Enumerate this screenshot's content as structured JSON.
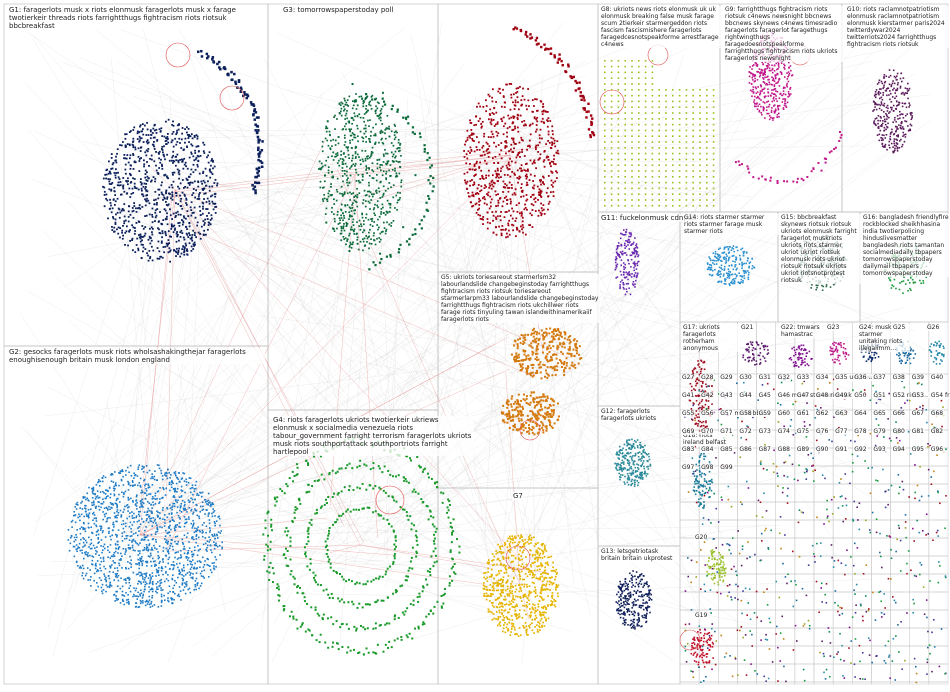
{
  "groups": [
    {
      "id": "G1",
      "label": "G1: faragerlots musk x riots elonmusk faragerlots musk x farage twotierkeir threads riots farrightthugs fightracism riots riotsuk bbcbreakfast",
      "color": "#0b1f5a"
    },
    {
      "id": "G2",
      "label": "G2: gesocks faragerlots musk riots wholsashakingthejar faragerlots enoughisenough britain musk london england",
      "color": "#1e7bc4"
    },
    {
      "id": "G3",
      "label": "G3: tomorrowspaperstoday poll",
      "color": "#0b6a3a"
    },
    {
      "id": "G4",
      "label": "G4: riots faragerlots ukriots twotierkeir ukriews elonmusk x socialmedia venezuela riots tabour_government farright terrorism faragerlots ukriots musk riots southportattack southportriots farright hartlepool",
      "color": "#1a9a2a"
    },
    {
      "id": "G5",
      "label": "G5: ukriots toriesareout starmerlsm32 labourlandslide changebeginstoday farrightthugs fightracism riots riotsuk toriesareout starmerlarpm33 labourlandslide changebeginstoday farrightthugs fightracism riots ukchillwer riots farage riots tinyuling tawan islandwithinamerikaiif faragerlots riots",
      "color": "#d47a10"
    },
    {
      "id": "G6",
      "label": "",
      "color": "#a00010"
    },
    {
      "id": "G7",
      "label": "G7",
      "color": "#e6b400"
    },
    {
      "id": "G8",
      "label": "G8: ukriots news riots elonmusk uk uk elonmusk breaking false musk farage scum 2tierkeir starmergeddon riots fascism fascismishere faragerlots faragedcesnotspeakforme arrestfarage c4news",
      "color": "#9ac020"
    },
    {
      "id": "G9",
      "label": "G9: farrightthugs fightracism riots riotsuk c4news newsnight bbcnews bbcnews skynews c4news timesradio faragerlots faragerlot faragethugs rightwingthugs faragedoesnotspeakforme farrightthugs fightracism riots ukriots faragerlots newsnight",
      "color": "#c0178a"
    },
    {
      "id": "G10",
      "label": "G10: riots raclamnotpatriotism elonmusk raclamnotpatriotism elonmusk kierstarmer paris2024 twitterdywar2024 twitterriots2024 farrightthugs fightracism riots riotsuk",
      "color": "#5a1a5a"
    },
    {
      "id": "G11",
      "label": "G11: fuckelonmusk cdnpoli",
      "color": "#6a2ab0"
    },
    {
      "id": "G12",
      "label": "G12: faragerlots faragerlots ukriots",
      "color": "#2a8a9a"
    },
    {
      "id": "G13",
      "label": "G13: letsgetriotask britain britain ukprotest",
      "color": "#10205a"
    },
    {
      "id": "G14",
      "label": "G14: riots starmer starmer riots starmer farage musk starmer riots",
      "color": "#2a90d0"
    },
    {
      "id": "G15",
      "label": "G15: bbcbreakfast skynews riotsuk riotsuk ukriots elonmusk farright faragerlot muskriots ukriots riots starmer ukriot ukriot riotsuk elonmusk riots ukriot riotsuk riotsuk ukriots ukriot riotsnotprotest riotsuk",
      "color": "#2a6a4a"
    },
    {
      "id": "G16",
      "label": "G16: bangladesh friendlyfire rockblocked sheikhhasina india twotierpolicing hinduslivesmatter bangladesh riots tamantan socialmediadaily tbpapers tomorrowspaperstoday dailymail tbpapers tomorrowspaperstoday",
      "color": "#1a9a3a"
    },
    {
      "id": "G17",
      "label": "G17: ukriots faragerlots rotherham anonymous",
      "color": "#a01020"
    },
    {
      "id": "G18",
      "label": "G18: riots ireland belfast",
      "color": "#1a7a9a"
    },
    {
      "id": "G19",
      "label": "G19",
      "color": "#c0102a"
    },
    {
      "id": "G20",
      "label": "G20",
      "color": "#9ac030"
    },
    {
      "id": "G21",
      "label": "G21",
      "color": "#5a1a6a"
    },
    {
      "id": "G22",
      "label": "G22: tmwars hamastrac",
      "color": "#801090"
    },
    {
      "id": "G23",
      "label": "G23",
      "color": "#c01a8a"
    },
    {
      "id": "G24",
      "label": "G24: musk starmer unitaking riots illegalimm…",
      "color": "#0a2a6a"
    },
    {
      "id": "G25",
      "label": "G25",
      "color": "#1a6aa0"
    },
    {
      "id": "G26",
      "label": "G26",
      "color": "#2a8aaa"
    }
  ],
  "small_groups": [
    "G27",
    "G28",
    "G29",
    "G30",
    "G31",
    "G32",
    "G33",
    "G34",
    "G35",
    "G36",
    "G37",
    "G38",
    "G39",
    "G40",
    "G41",
    "G42",
    "G43",
    "G44",
    "G45",
    "G46",
    "G47",
    "G48",
    "G49",
    "G50",
    "G51",
    "G52",
    "G53",
    "G54",
    "G55",
    "G56",
    "G57",
    "G58",
    "G59",
    "G60",
    "G61",
    "G62",
    "G63",
    "G64",
    "G65",
    "G66",
    "G67",
    "G68",
    "G69",
    "G70",
    "G71",
    "G72",
    "G73",
    "G74",
    "G75",
    "G76",
    "G77",
    "G78",
    "G79",
    "G80",
    "G81",
    "G82",
    "G83",
    "G84",
    "G85",
    "G86",
    "G87",
    "G88",
    "G89",
    "G90",
    "G91",
    "G92",
    "G93",
    "G94",
    "G95",
    "G96",
    "G97",
    "G98",
    "G99"
  ],
  "small_labels": {
    "G33": "G33: tomorro… tbpapers uk",
    "G35": "G35 ukraine",
    "G36": "G36 …",
    "G45": "G45: twitte…",
    "G46": "G46 musk starmer musk",
    "G47": "G47: … riotsuk",
    "G48": "G48 riots",
    "G50": "G50: twitt…",
    "G52": "G52 riots …",
    "G53": "G53: thug…",
    "G54": "G54 frui…",
    "G57": "G57 musk bbn…"
  }
}
